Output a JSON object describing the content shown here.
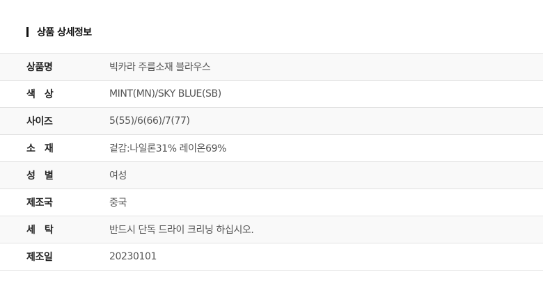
{
  "section_title": "상품 상세정보",
  "rows": [
    {
      "label": "상품명",
      "value": "빅카라 주름소재 블라우스"
    },
    {
      "label": "색   상",
      "value": "MINT(MN)/SKY BLUE(SB)"
    },
    {
      "label": "사이즈",
      "value": "5(55)/6(66)/7(77)"
    },
    {
      "label": "소   재",
      "value": "겉감:나일론31% 레이온69%"
    },
    {
      "label": "성   별",
      "value": "여성"
    },
    {
      "label": "제조국",
      "value": "중국"
    },
    {
      "label": "세   탁",
      "value": "반드시 단독 드라이 크리닝 하십시오."
    },
    {
      "label": "제조일",
      "value": "20230101"
    }
  ]
}
